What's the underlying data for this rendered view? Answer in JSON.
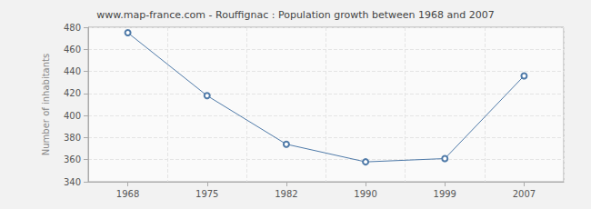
{
  "chart_data": {
    "type": "line",
    "title": "www.map-france.com - Rouffignac : Population growth between 1968 and 2007",
    "y_label": "Number of inhabitants",
    "categories": [
      "1968",
      "1975",
      "1982",
      "1990",
      "1999",
      "2007"
    ],
    "values": [
      475,
      418,
      374,
      358,
      361,
      436
    ],
    "color": "#4f7aa8",
    "marker": "circle",
    "ylim": [
      340,
      480
    ],
    "yticks": [
      340,
      360,
      380,
      400,
      420,
      440,
      460,
      480
    ],
    "grid": true
  }
}
